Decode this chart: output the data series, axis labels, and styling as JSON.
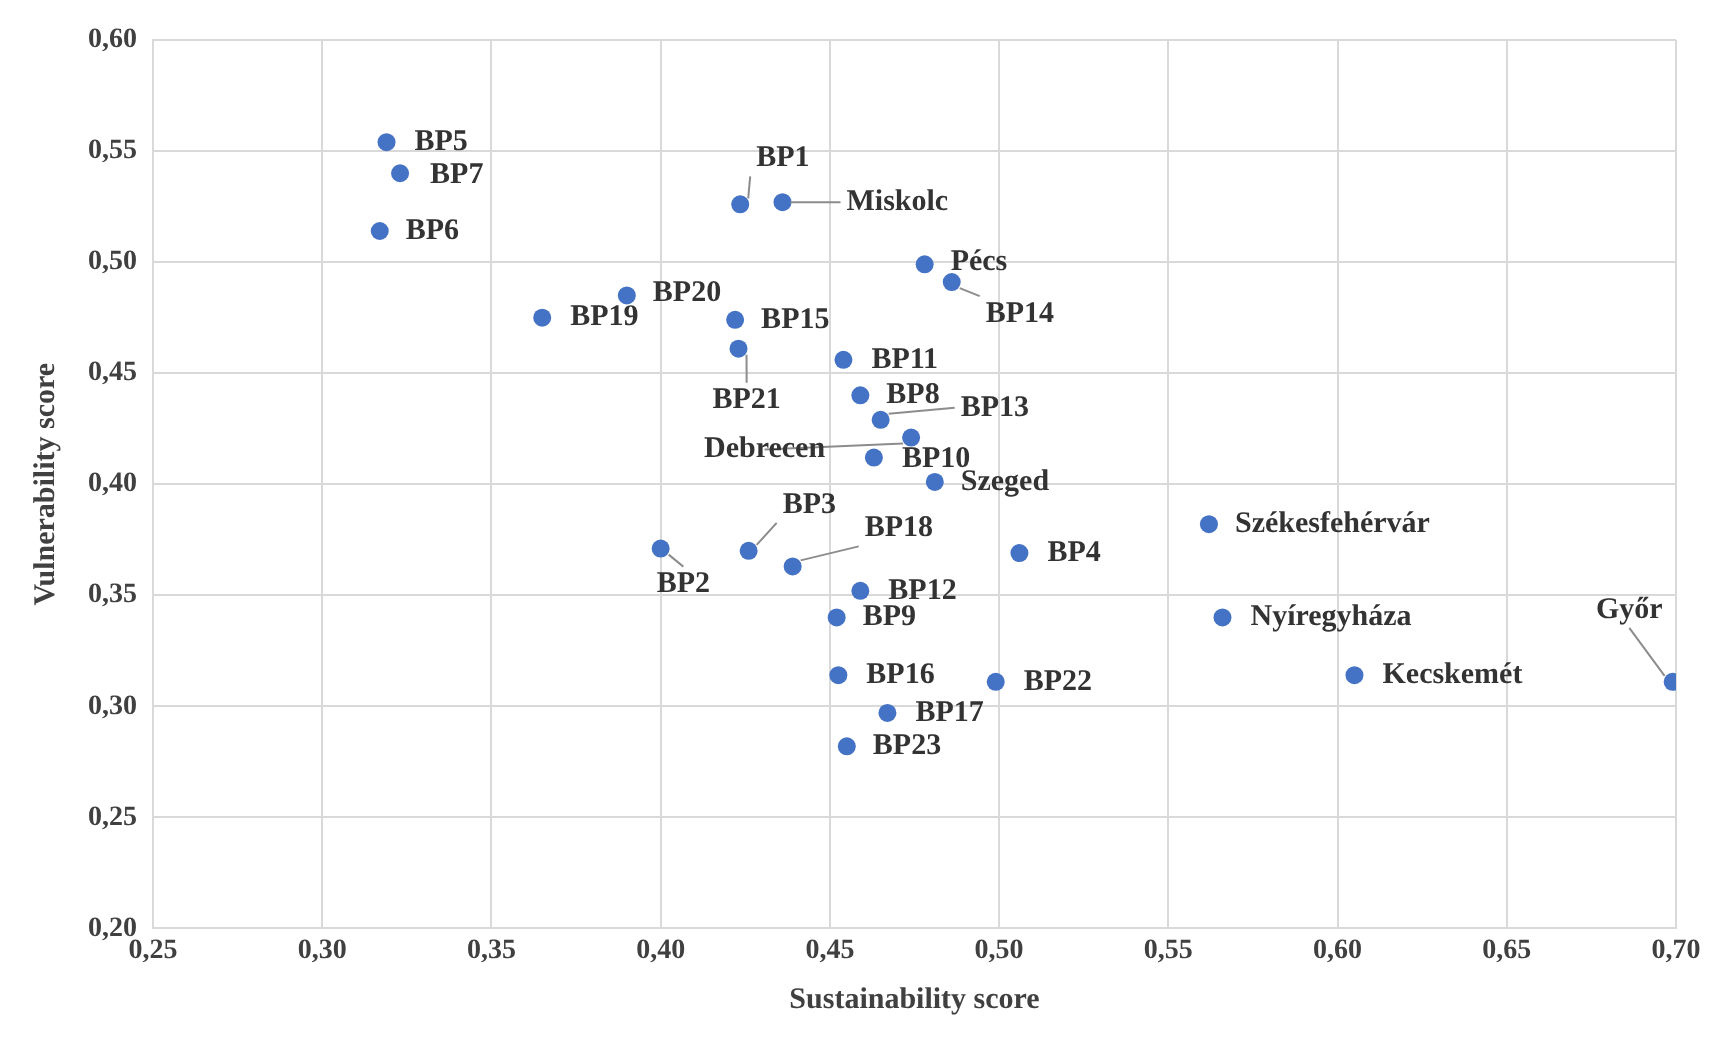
{
  "chart_data": {
    "type": "scatter",
    "xlabel": "Sustainability score",
    "ylabel": "Vulnerability score",
    "xlim": [
      0.25,
      0.7
    ],
    "ylim": [
      0.2,
      0.6
    ],
    "xticks": [
      {
        "value": 0.25,
        "label": "0,25"
      },
      {
        "value": 0.3,
        "label": "0,30"
      },
      {
        "value": 0.35,
        "label": "0,35"
      },
      {
        "value": 0.4,
        "label": "0,40"
      },
      {
        "value": 0.45,
        "label": "0,45"
      },
      {
        "value": 0.5,
        "label": "0,50"
      },
      {
        "value": 0.55,
        "label": "0,55"
      },
      {
        "value": 0.6,
        "label": "0,60"
      },
      {
        "value": 0.65,
        "label": "0,65"
      },
      {
        "value": 0.7,
        "label": "0,70"
      }
    ],
    "yticks": [
      {
        "value": 0.2,
        "label": "0,20"
      },
      {
        "value": 0.25,
        "label": "0,25"
      },
      {
        "value": 0.3,
        "label": "0,30"
      },
      {
        "value": 0.35,
        "label": "0,35"
      },
      {
        "value": 0.4,
        "label": "0,40"
      },
      {
        "value": 0.45,
        "label": "0,45"
      },
      {
        "value": 0.5,
        "label": "0,50"
      },
      {
        "value": 0.55,
        "label": "0,55"
      },
      {
        "value": 0.6,
        "label": "0,60"
      }
    ],
    "grid": true,
    "legend": false,
    "marker": "circle",
    "series": [
      {
        "color": "#4472c4",
        "x": [
          0.319,
          0.323,
          0.317,
          0.4235,
          0.436,
          0.478,
          0.486,
          0.39,
          0.365,
          0.422,
          0.423,
          0.454,
          0.459,
          0.465,
          0.474,
          0.463,
          0.481,
          0.426,
          0.4,
          0.439,
          0.506,
          0.459,
          0.452,
          0.4525,
          0.499,
          0.467,
          0.455,
          0.562,
          0.566,
          0.605,
          0.699
        ],
        "values": [
          0.554,
          0.54,
          0.514,
          0.526,
          0.527,
          0.499,
          0.491,
          0.485,
          0.475,
          0.474,
          0.461,
          0.456,
          0.44,
          0.429,
          0.421,
          0.412,
          0.401,
          0.37,
          0.371,
          0.363,
          0.369,
          0.352,
          0.34,
          0.314,
          0.311,
          0.297,
          0.282,
          0.382,
          0.34,
          0.314,
          0.311
        ]
      }
    ],
    "annotations": [
      {
        "text": "BP5",
        "x": 0.319,
        "y": 0.554
      },
      {
        "text": "BP7",
        "x": 0.323,
        "y": 0.54
      },
      {
        "text": "BP6",
        "x": 0.317,
        "y": 0.514
      },
      {
        "text": "BP1",
        "x": 0.4235,
        "y": 0.526
      },
      {
        "text": "Miskolc",
        "x": 0.436,
        "y": 0.527
      },
      {
        "text": "Pécs",
        "x": 0.478,
        "y": 0.499
      },
      {
        "text": "BP14",
        "x": 0.486,
        "y": 0.491
      },
      {
        "text": "BP20",
        "x": 0.39,
        "y": 0.485
      },
      {
        "text": "BP19",
        "x": 0.365,
        "y": 0.475
      },
      {
        "text": "BP15",
        "x": 0.422,
        "y": 0.474
      },
      {
        "text": "BP21",
        "x": 0.423,
        "y": 0.461
      },
      {
        "text": "BP11",
        "x": 0.454,
        "y": 0.456
      },
      {
        "text": "BP8",
        "x": 0.459,
        "y": 0.44
      },
      {
        "text": "BP13",
        "x": 0.465,
        "y": 0.429
      },
      {
        "text": "Debrecen",
        "x": 0.474,
        "y": 0.421
      },
      {
        "text": "BP10",
        "x": 0.463,
        "y": 0.412
      },
      {
        "text": "Szeged",
        "x": 0.481,
        "y": 0.401
      },
      {
        "text": "BP3",
        "x": 0.426,
        "y": 0.37
      },
      {
        "text": "BP2",
        "x": 0.4,
        "y": 0.371
      },
      {
        "text": "BP18",
        "x": 0.439,
        "y": 0.363
      },
      {
        "text": "BP4",
        "x": 0.506,
        "y": 0.369
      },
      {
        "text": "BP12",
        "x": 0.459,
        "y": 0.352
      },
      {
        "text": "BP9",
        "x": 0.452,
        "y": 0.34
      },
      {
        "text": "BP16",
        "x": 0.4525,
        "y": 0.314
      },
      {
        "text": "BP22",
        "x": 0.499,
        "y": 0.311
      },
      {
        "text": "BP17",
        "x": 0.467,
        "y": 0.297
      },
      {
        "text": "BP23",
        "x": 0.455,
        "y": 0.282
      },
      {
        "text": "Székesfehérvár",
        "x": 0.562,
        "y": 0.382
      },
      {
        "text": "Nyíregyháza",
        "x": 0.566,
        "y": 0.34
      },
      {
        "text": "Kecskemét",
        "x": 0.605,
        "y": 0.314
      },
      {
        "text": "Győr",
        "x": 0.699,
        "y": 0.311
      }
    ]
  }
}
